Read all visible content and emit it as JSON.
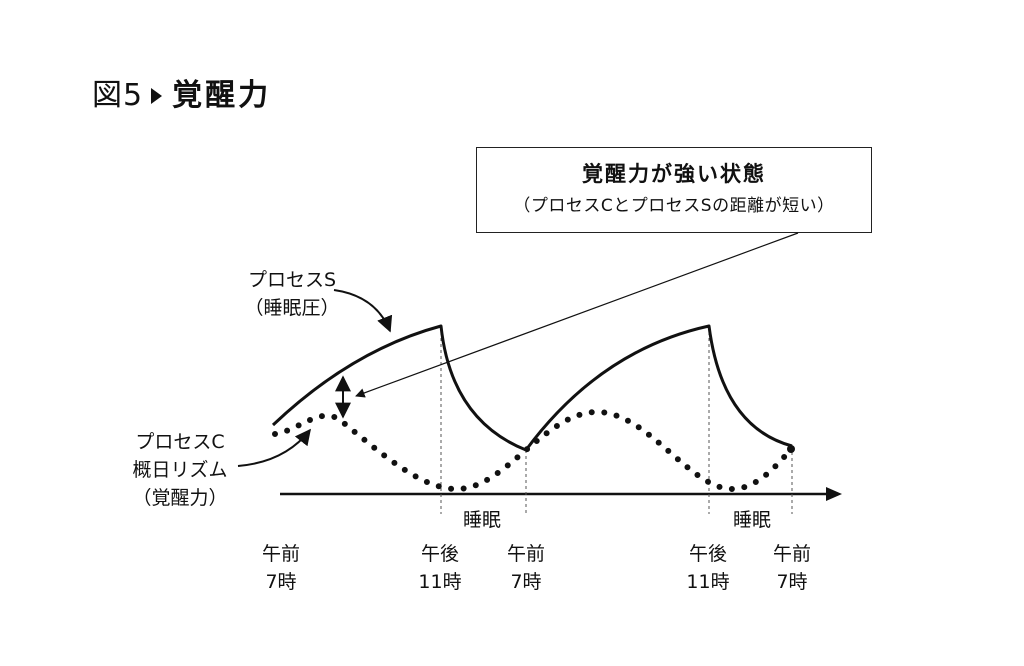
{
  "figure": {
    "number": "図5",
    "title": "覚醒力"
  },
  "callout": {
    "title": "覚醒力が強い状態",
    "subtitle": "（プロセスCとプロセスSの距離が短い）"
  },
  "process_s_label": {
    "line1": "プロセスS",
    "line2": "（睡眠圧）"
  },
  "process_c_label": {
    "line1": "プロセスC",
    "line2": "概日リズム",
    "line3": "（覚醒力）"
  },
  "sleep_labels": [
    "睡眠",
    "睡眠"
  ],
  "time_ticks": [
    {
      "line1": "午前",
      "line2": "7時"
    },
    {
      "line1": "午後",
      "line2": "11時"
    },
    {
      "line1": "午前",
      "line2": "7時"
    },
    {
      "line1": "午後",
      "line2": "11時"
    },
    {
      "line1": "午前",
      "line2": "7時"
    }
  ],
  "colors": {
    "ink": "#111111",
    "guide": "#555555"
  }
}
